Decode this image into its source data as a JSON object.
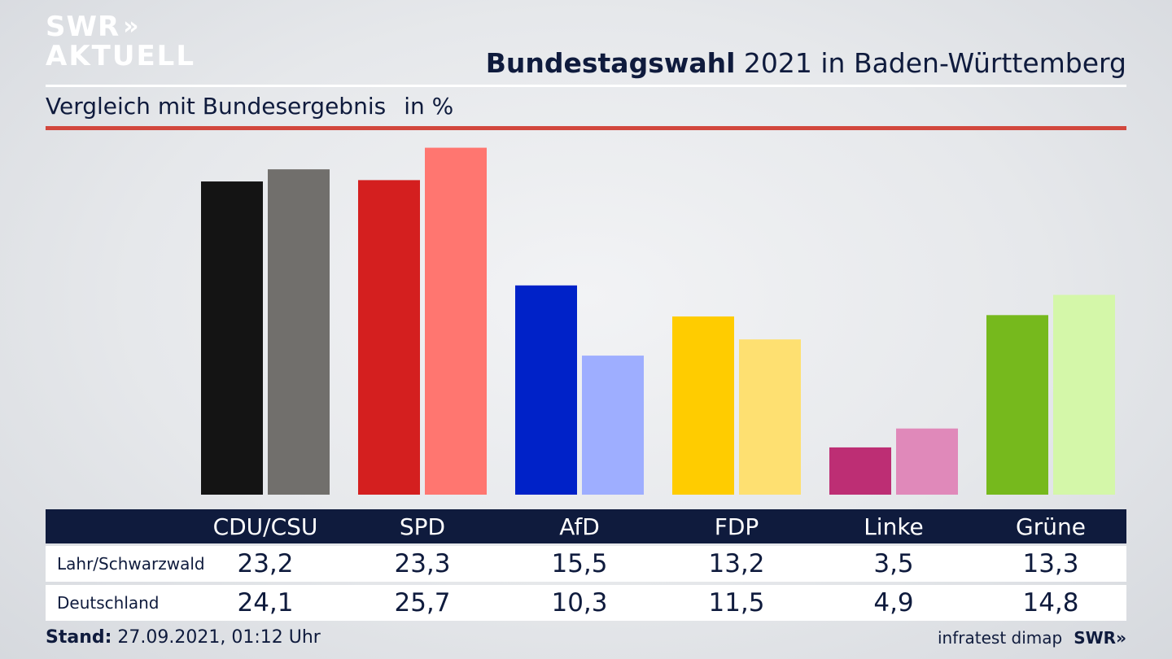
{
  "logo": {
    "line1": "SWR",
    "arrows": "»",
    "line2": "AKTUELL"
  },
  "header": {
    "title_bold": "Bundestagswahl",
    "title_rest": " 2021 in Baden-Württemberg",
    "subtitle": "Vergleich mit Bundesergebnis",
    "unit": "in %"
  },
  "chart_data": {
    "type": "bar",
    "categories": [
      "CDU/CSU",
      "SPD",
      "AfD",
      "FDP",
      "Linke",
      "Grüne"
    ],
    "series": [
      {
        "name": "Lahr/Schwarzwald",
        "values": [
          23.2,
          23.3,
          15.5,
          13.2,
          3.5,
          13.3
        ]
      },
      {
        "name": "Deutschland",
        "values": [
          24.1,
          25.7,
          10.3,
          11.5,
          4.9,
          14.8
        ]
      }
    ],
    "colors": {
      "Lahr/Schwarzwald": [
        "#141414",
        "#d41f1f",
        "#0022c8",
        "#ffcc00",
        "#bd2e74",
        "#76b91d"
      ],
      "Deutschland": [
        "#716f6c",
        "#ff7670",
        "#9eaeff",
        "#fee071",
        "#e089ba",
        "#d4f7a9"
      ]
    },
    "ylim": [
      0,
      27
    ]
  },
  "footer": {
    "stand_label": "Stand:",
    "stand_value": " 27.09.2021, 01:12 Uhr",
    "source": "infratest dimap",
    "brand": "SWR»"
  }
}
